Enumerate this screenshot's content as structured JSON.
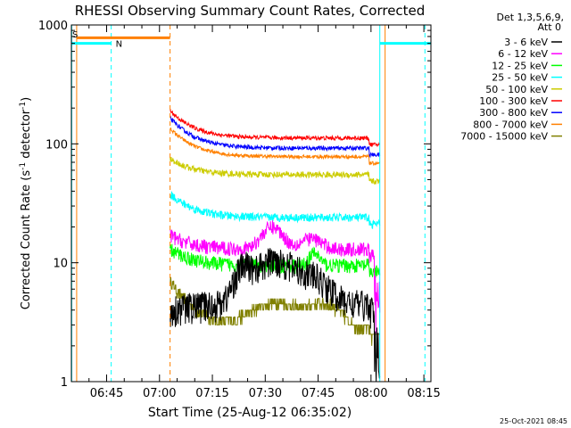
{
  "chart_data": {
    "type": "line",
    "title": "RHESSI Observing Summary Count Rates, Corrected",
    "xlabel": "Start Time (25-Aug-12 06:35:02)",
    "ylabel_parts": [
      "Corrected Count Rate (s",
      "-1",
      " detector",
      "-1",
      ")"
    ],
    "ylog": true,
    "ylim": [
      1,
      1000
    ],
    "xlim_minutes_after_0635": [
      0,
      102
    ],
    "xticks": [
      {
        "label": "06:45",
        "t": 10
      },
      {
        "label": "07:00",
        "t": 25
      },
      {
        "label": "07:15",
        "t": 40
      },
      {
        "label": "07:30",
        "t": 55
      },
      {
        "label": "07:45",
        "t": 70
      },
      {
        "label": "08:00",
        "t": 85
      },
      {
        "label": "08:15",
        "t": 100
      }
    ],
    "yticks": [
      {
        "label": "1",
        "v": 1
      },
      {
        "label": "10",
        "v": 10
      },
      {
        "label": "100",
        "v": 100
      },
      {
        "label": "1000",
        "v": 1000
      }
    ],
    "legend_header": [
      "Det 1,3,5,6,9,",
      "Att 0"
    ],
    "legend_position": "right",
    "data_gap": {
      "before_t": 28,
      "after_t": 87.5
    },
    "series": [
      {
        "name": "3 - 6 keV",
        "color": "#000000",
        "start": 4,
        "plateau": 4.5,
        "bumps": [
          [
            48.5,
            3.5,
            3.2
          ],
          [
            57.5,
            6,
            7.5
          ],
          [
            68.5,
            2.7,
            6
          ]
        ],
        "noise": 0.3,
        "end_drop": true
      },
      {
        "name": "6 - 12 keV",
        "color": "#ff00ff",
        "start": 17,
        "plateau": 13,
        "bumps": [
          [
            57,
            7,
            4
          ],
          [
            68,
            3,
            4
          ]
        ],
        "noise": 0.14,
        "end_drop": true
      },
      {
        "name": "12 - 25 keV",
        "color": "#00ff00",
        "start": 13,
        "plateau": 9.5,
        "bumps": [
          [
            69,
            2.5,
            2
          ]
        ],
        "noise": 0.14
      },
      {
        "name": "25 - 50 keV",
        "color": "#00ffff",
        "start": 38,
        "plateau": 24,
        "bumps": [],
        "noise": 0.08
      },
      {
        "name": "50 - 100 keV",
        "color": "#cccc00",
        "start": 75,
        "plateau": 55,
        "bumps": [],
        "noise": 0.06
      },
      {
        "name": "100 - 300 keV",
        "color": "#ff0000",
        "start": 190,
        "plateau": 112,
        "bumps": [],
        "noise": 0.04
      },
      {
        "name": "300 - 800 keV",
        "color": "#0000ff",
        "start": 165,
        "plateau": 92,
        "bumps": [],
        "noise": 0.04
      },
      {
        "name": "800 - 7000 keV",
        "color": "#ff8000",
        "start": 135,
        "plateau": 78,
        "bumps": [],
        "noise": 0.035
      },
      {
        "name": "7000 - 15000 keV",
        "color": "#808000",
        "start": 7,
        "plateau": 2.8,
        "bumps": [
          [
            58,
            1.8,
            9
          ],
          [
            72,
            1.6,
            6
          ]
        ],
        "noise": 0.12,
        "stepped": true
      }
    ],
    "flags": {
      "night": {
        "label": "N",
        "color": "#00ffff",
        "segments": [
          [
            0,
            11.3
          ],
          [
            87.5,
            102
          ]
        ],
        "level": 700
      },
      "attenuator": {
        "label": "",
        "color": "#ff8000",
        "segments": [
          [
            1.5,
            28
          ]
        ],
        "level": 780
      },
      "vlines": [
        {
          "t": 0.1,
          "color": "#00ffff",
          "dashed": false
        },
        {
          "t": 1.5,
          "color": "#ff8000",
          "dashed": false
        },
        {
          "t": 11.3,
          "color": "#00ffff",
          "dashed": true
        },
        {
          "t": 28,
          "color": "#ff8000",
          "dashed": true
        },
        {
          "t": 87.5,
          "color": "#00ffff",
          "dashed": false
        },
        {
          "t": 89,
          "color": "#ff8000",
          "dashed": false
        },
        {
          "t": 100.3,
          "color": "#00ffff",
          "dashed": true
        }
      ]
    },
    "corner_label": "S",
    "footer_timestamp": "25-Oct-2021 08:45"
  }
}
